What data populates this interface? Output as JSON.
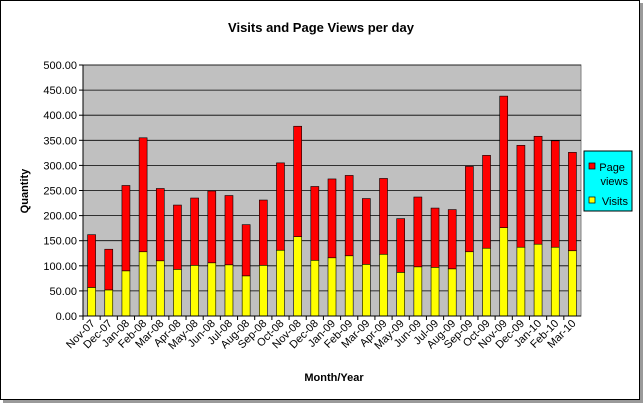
{
  "chart_data": {
    "type": "bar",
    "stacked": true,
    "title": "Visits and Page Views per day",
    "xlabel": "Month/Year",
    "ylabel": "Quantity",
    "ylim": [
      0,
      500
    ],
    "yticks": [
      "0.00",
      "50.00",
      "100.00",
      "150.00",
      "200.00",
      "250.00",
      "300.00",
      "350.00",
      "400.00",
      "450.00",
      "500.00"
    ],
    "grid": true,
    "legend_position": "right",
    "categories": [
      "Nov-07",
      "Dec-07",
      "Jan-08",
      "Feb-08",
      "Mar-08",
      "Apr-08",
      "May-08",
      "Jun-08",
      "Jul-08",
      "Aug-08",
      "Sep-08",
      "Oct-08",
      "Nov-08",
      "Dec-08",
      "Jan-09",
      "Feb-09",
      "Mar-09",
      "Apr-09",
      "May-09",
      "Jun-09",
      "Jul-09",
      "Aug-09",
      "Sep-09",
      "Oct-09",
      "Nov-09",
      "Dec-09",
      "Jan-10",
      "Feb-10",
      "Mar-10"
    ],
    "series": [
      {
        "name": "Visits",
        "color": "#ffff00",
        "values": [
          57,
          52,
          90,
          128,
          110,
          93,
          101,
          106,
          102,
          80,
          101,
          131,
          158,
          111,
          116,
          120,
          103,
          123,
          87,
          98,
          97,
          94,
          128,
          135,
          176,
          137,
          143,
          137,
          130
        ]
      },
      {
        "name": "Page views",
        "color": "#ff0000",
        "values": [
          105,
          81,
          170,
          227,
          144,
          128,
          134,
          143,
          138,
          102,
          130,
          174,
          220,
          147,
          157,
          160,
          131,
          151,
          107,
          139,
          118,
          118,
          170,
          185,
          262,
          203,
          215,
          212,
          196
        ]
      }
    ],
    "legend": [
      "Page views",
      "Visits"
    ]
  },
  "style": {
    "plot_background": "#c0c0c0",
    "legend_background": "#00ffff",
    "gridline_color": "#000000"
  }
}
